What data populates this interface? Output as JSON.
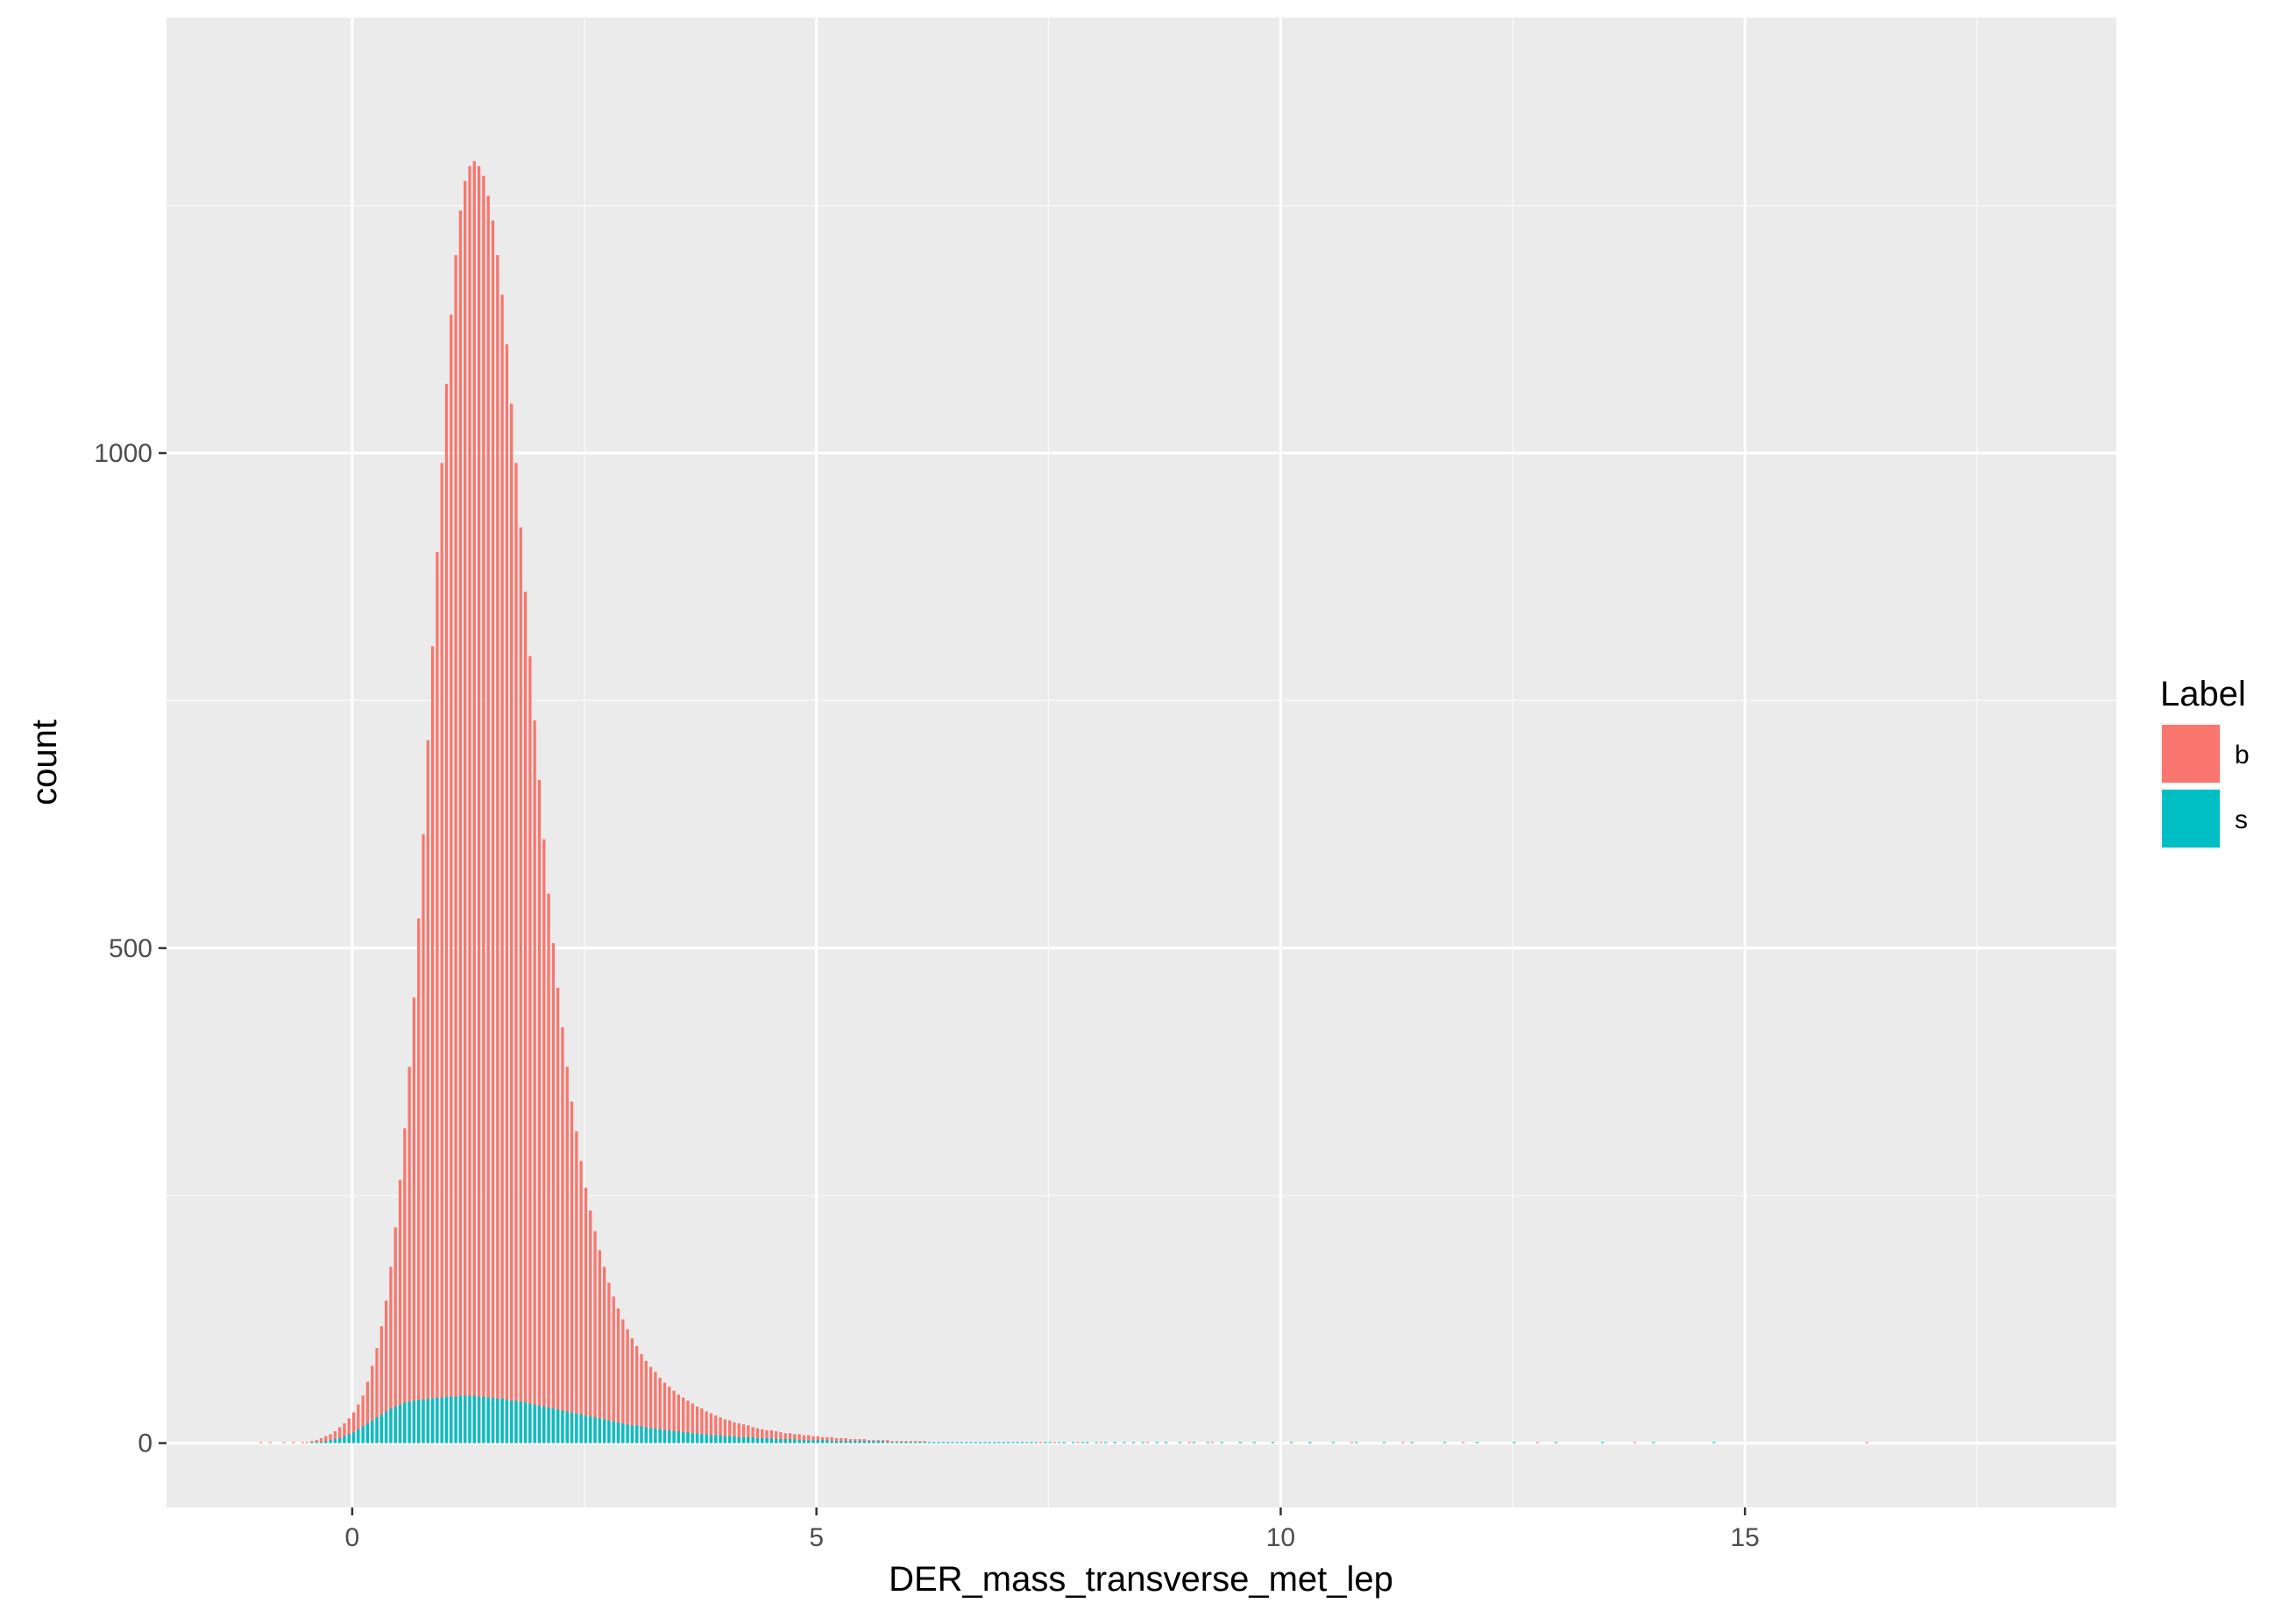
{
  "chart_data": {
    "type": "bar",
    "subtype": "histogram",
    "title": "",
    "xlabel": "DER_mass_transverse_met_lep",
    "ylabel": "count",
    "xlim": [
      -2,
      19
    ],
    "ylim": [
      -65,
      1440
    ],
    "x_ticks": [
      0,
      5,
      10,
      15
    ],
    "x_tick_labels": [
      "0",
      "5",
      "10",
      "15"
    ],
    "y_ticks": [
      0,
      500,
      1000
    ],
    "y_tick_labels": [
      "0",
      "500",
      "1000"
    ],
    "grid": true,
    "legend": {
      "title": "Label",
      "position": "right",
      "entries": [
        {
          "label": "b",
          "color": "#F8766D"
        },
        {
          "label": "s",
          "color": "#00BFC4"
        }
      ]
    },
    "bin_width": 0.05,
    "series": [
      {
        "name": "b",
        "color": "#F8766D",
        "x_start": -1.0,
        "values": [
          1,
          0,
          1,
          0,
          0,
          1,
          0,
          1,
          0,
          1,
          1,
          2,
          3,
          5,
          7,
          9,
          12,
          16,
          20,
          25,
          31,
          39,
          48,
          62,
          78,
          96,
          118,
          144,
          178,
          218,
          266,
          318,
          380,
          450,
          530,
          615,
          710,
          805,
          900,
          990,
          1070,
          1140,
          1200,
          1245,
          1275,
          1290,
          1295,
          1290,
          1280,
          1260,
          1235,
          1200,
          1160,
          1110,
          1050,
          990,
          925,
          860,
          795,
          730,
          670,
          610,
          555,
          505,
          460,
          420,
          380,
          345,
          315,
          285,
          258,
          235,
          214,
          195,
          178,
          162,
          148,
          136,
          125,
          115,
          106,
          98,
          90,
          83,
          77,
          72,
          66,
          61,
          57,
          53,
          49,
          46,
          43,
          40,
          37,
          35,
          32,
          30,
          28,
          26,
          24,
          23,
          21,
          20,
          19,
          18,
          16,
          15,
          14,
          13,
          13,
          12,
          11,
          10,
          10,
          9,
          9,
          8,
          8,
          7,
          7,
          6,
          6,
          6,
          5,
          5,
          5,
          4,
          4,
          4,
          4,
          3,
          3,
          3,
          3,
          3,
          2,
          2,
          2,
          2,
          2,
          2,
          2,
          2,
          1,
          1,
          1,
          1,
          1,
          1,
          1,
          1,
          1,
          1,
          1,
          1,
          1,
          1,
          1,
          1,
          1,
          1,
          0,
          1,
          1,
          0,
          1,
          0,
          1,
          1,
          0,
          1,
          0,
          1,
          0,
          0,
          1,
          0,
          1,
          0,
          0,
          1,
          0,
          0,
          1,
          0,
          0,
          0,
          1,
          0,
          0,
          1,
          0,
          0,
          0,
          1,
          0,
          0,
          0,
          0,
          1,
          0,
          0,
          0,
          0,
          1,
          0,
          0,
          0,
          0,
          0,
          1,
          0,
          0,
          0,
          0,
          0,
          0,
          1,
          0,
          0,
          0,
          0,
          0,
          0,
          0,
          1,
          0,
          0,
          0,
          0,
          0,
          0,
          0,
          0,
          1,
          0,
          0,
          0,
          0,
          0,
          0,
          0,
          0,
          0,
          0,
          1,
          0,
          0,
          0,
          0,
          0,
          0,
          0,
          0,
          0,
          0,
          0,
          0,
          1,
          0,
          0,
          0,
          0,
          0,
          0,
          0,
          0,
          0,
          0,
          0,
          0,
          0,
          0,
          0,
          1,
          0,
          0,
          0,
          0,
          0,
          0,
          0,
          0,
          0,
          0,
          0,
          0,
          0,
          0,
          0,
          0,
          0,
          0,
          0,
          0,
          1,
          0,
          0,
          0,
          0,
          0,
          0,
          0,
          0,
          0,
          0,
          0,
          0,
          0,
          0,
          0,
          0,
          0,
          0,
          0,
          0,
          0,
          0,
          0,
          0,
          0,
          0,
          0,
          0,
          0,
          0,
          0,
          0,
          0,
          0,
          0,
          0,
          0,
          0,
          0,
          0,
          0,
          0,
          0,
          0,
          0,
          0,
          0,
          0,
          0,
          1
        ]
      },
      {
        "name": "s",
        "color": "#00BFC4",
        "x_start": -1.0,
        "values": [
          0,
          0,
          0,
          0,
          0,
          0,
          0,
          0,
          0,
          0,
          0,
          1,
          1,
          1,
          2,
          3,
          4,
          5,
          7,
          9,
          11,
          14,
          17,
          20,
          23,
          26,
          29,
          32,
          35,
          37,
          39,
          41,
          42,
          43,
          44,
          44,
          45,
          45,
          46,
          46,
          47,
          47,
          47,
          48,
          48,
          48,
          48,
          47,
          47,
          46,
          46,
          45,
          45,
          44,
          43,
          43,
          42,
          41,
          40,
          39,
          38,
          37,
          36,
          35,
          34,
          33,
          32,
          31,
          30,
          29,
          28,
          27,
          26,
          25,
          24,
          23,
          22,
          21,
          20,
          19,
          18,
          18,
          17,
          16,
          15,
          15,
          14,
          13,
          13,
          12,
          12,
          11,
          11,
          10,
          10,
          9,
          9,
          8,
          8,
          8,
          7,
          7,
          7,
          6,
          6,
          6,
          6,
          5,
          5,
          5,
          5,
          4,
          4,
          4,
          4,
          4,
          3,
          3,
          3,
          3,
          3,
          3,
          3,
          2,
          2,
          2,
          2,
          2,
          2,
          2,
          2,
          2,
          2,
          2,
          2,
          1,
          1,
          1,
          1,
          1,
          1,
          1,
          1,
          1,
          1,
          1,
          1,
          1,
          1,
          1,
          1,
          1,
          1,
          1,
          1,
          1,
          1,
          1,
          1,
          1,
          1,
          1,
          1,
          1,
          1,
          1,
          1,
          1,
          0,
          1,
          1,
          0,
          1,
          1,
          0,
          1,
          0,
          1,
          1,
          0,
          1,
          0,
          1,
          0,
          1,
          0,
          1,
          0,
          1,
          0,
          1,
          0,
          0,
          1,
          0,
          1,
          0,
          0,
          1,
          0,
          0,
          1,
          0,
          0,
          1,
          0,
          0,
          1,
          0,
          0,
          0,
          1,
          0,
          0,
          1,
          0,
          0,
          0,
          1,
          0,
          0,
          0,
          1,
          0,
          0,
          0,
          1,
          0,
          0,
          0,
          0,
          1,
          0,
          0,
          0,
          0,
          1,
          0,
          0,
          0,
          0,
          0,
          1,
          0,
          0,
          0,
          0,
          0,
          1,
          0,
          0,
          0,
          0,
          0,
          0,
          1,
          0,
          0,
          0,
          0,
          0,
          0,
          1,
          0,
          0,
          0,
          0,
          0,
          0,
          0,
          1,
          0,
          0,
          0,
          0,
          0,
          0,
          0,
          0,
          1,
          0,
          0,
          0,
          0,
          0,
          0,
          0,
          0,
          0,
          1,
          0,
          0,
          0,
          0,
          0,
          0,
          0,
          0,
          0,
          0,
          1,
          0,
          0,
          0,
          0,
          0,
          0,
          0,
          0,
          0,
          0,
          0,
          0,
          1,
          0,
          0,
          0,
          0,
          0,
          0,
          0,
          0,
          0,
          0,
          0,
          0,
          0,
          0,
          0,
          0,
          0,
          0,
          0,
          0,
          0,
          0,
          0,
          0,
          0,
          0,
          0,
          0,
          0,
          0,
          0,
          0,
          0,
          0,
          0,
          0,
          0,
          0,
          0,
          0,
          0,
          0,
          0,
          0,
          0,
          0,
          0,
          0,
          0,
          0,
          0
        ]
      }
    ]
  }
}
